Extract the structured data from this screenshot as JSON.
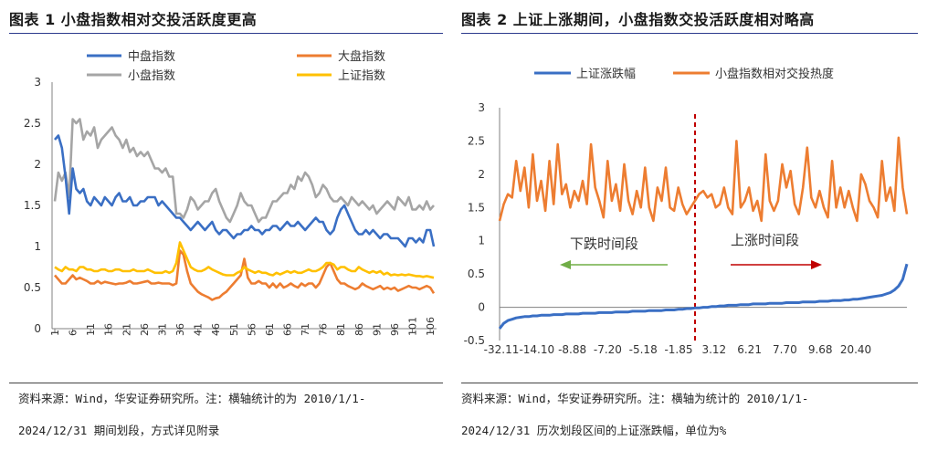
{
  "left": {
    "title": "图表 1 小盘指数相对交投活跃度更高",
    "source_line1": "资料来源：Wind，华安证券研究所。注：横轴统计的为 2010/1/1-",
    "source_line2": "2024/12/31 期间划段，方式详见附录"
  },
  "right": {
    "title": "图表 2 上证上涨期间，小盘指数交投活跃度相对略高",
    "source_line1": "资料来源：Wind，华安证券研究所。注：横轴为统计的 2010/1/1-",
    "source_line2": "2024/12/31 历次划段区间的上证涨跌幅，单位为%"
  },
  "colors": {
    "blue": "#3a6fc4",
    "orange": "#ed7d31",
    "gray": "#a5a5a5",
    "yellow": "#ffc000",
    "red_dash": "#c00000",
    "green_arrow": "#70ad47",
    "red_arrow": "#c00000"
  },
  "chart_data": [
    {
      "type": "line",
      "title": "小盘指数相对交投活跃度更高",
      "ylim": [
        0,
        3
      ],
      "yticks": [
        "0",
        "0.5",
        "1",
        "1.5",
        "2",
        "2.5",
        "3"
      ],
      "xlabel": "",
      "ylabel": "",
      "x_tick_labels": [
        "1",
        "6",
        "11",
        "16",
        "21",
        "26",
        "31",
        "36",
        "41",
        "46",
        "51",
        "56",
        "61",
        "66",
        "71",
        "76",
        "81",
        "86",
        "91",
        "96",
        "101",
        "106"
      ],
      "legend": [
        "中盘指数",
        "大盘指数",
        "小盘指数",
        "上证指数"
      ],
      "series": [
        {
          "name": "中盘指数",
          "color_key": "blue",
          "values": [
            2.3,
            2.35,
            2.2,
            1.85,
            1.4,
            1.95,
            1.7,
            1.65,
            1.7,
            1.55,
            1.5,
            1.6,
            1.55,
            1.5,
            1.6,
            1.55,
            1.5,
            1.6,
            1.65,
            1.55,
            1.55,
            1.6,
            1.5,
            1.5,
            1.55,
            1.55,
            1.6,
            1.6,
            1.6,
            1.5,
            1.55,
            1.5,
            1.45,
            1.4,
            1.35,
            1.35,
            1.3,
            1.25,
            1.2,
            1.25,
            1.3,
            1.25,
            1.2,
            1.25,
            1.3,
            1.2,
            1.15,
            1.2,
            1.2,
            1.15,
            1.1,
            1.15,
            1.15,
            1.2,
            1.2,
            1.25,
            1.2,
            1.2,
            1.15,
            1.2,
            1.2,
            1.25,
            1.25,
            1.2,
            1.25,
            1.3,
            1.25,
            1.25,
            1.3,
            1.25,
            1.2,
            1.25,
            1.3,
            1.35,
            1.3,
            1.3,
            1.2,
            1.15,
            1.2,
            1.35,
            1.45,
            1.5,
            1.4,
            1.3,
            1.2,
            1.15,
            1.15,
            1.2,
            1.15,
            1.2,
            1.15,
            1.1,
            1.15,
            1.15,
            1.1,
            1.1,
            1.1,
            1.05,
            1.0,
            1.1,
            1.1,
            1.05,
            1.1,
            1.05,
            1.2,
            1.2,
            1.0
          ]
        },
        {
          "name": "大盘指数",
          "color_key": "orange",
          "values": [
            0.65,
            0.6,
            0.55,
            0.55,
            0.6,
            0.65,
            0.6,
            0.62,
            0.6,
            0.58,
            0.55,
            0.55,
            0.58,
            0.55,
            0.57,
            0.56,
            0.55,
            0.54,
            0.55,
            0.55,
            0.56,
            0.58,
            0.55,
            0.55,
            0.56,
            0.57,
            0.58,
            0.55,
            0.55,
            0.56,
            0.55,
            0.55,
            0.55,
            0.53,
            0.55,
            0.95,
            0.9,
            0.7,
            0.55,
            0.5,
            0.45,
            0.42,
            0.4,
            0.38,
            0.35,
            0.37,
            0.38,
            0.42,
            0.45,
            0.5,
            0.55,
            0.6,
            0.65,
            0.85,
            0.62,
            0.55,
            0.55,
            0.58,
            0.55,
            0.55,
            0.5,
            0.55,
            0.5,
            0.55,
            0.5,
            0.52,
            0.55,
            0.52,
            0.5,
            0.55,
            0.52,
            0.55,
            0.55,
            0.5,
            0.55,
            0.65,
            0.75,
            0.8,
            0.7,
            0.6,
            0.55,
            0.55,
            0.52,
            0.5,
            0.48,
            0.5,
            0.55,
            0.52,
            0.5,
            0.48,
            0.5,
            0.52,
            0.48,
            0.5,
            0.48,
            0.5,
            0.46,
            0.48,
            0.5,
            0.52,
            0.5,
            0.5,
            0.48,
            0.5,
            0.52,
            0.5,
            0.43
          ]
        },
        {
          "name": "小盘指数",
          "color_key": "gray",
          "values": [
            1.55,
            1.9,
            1.8,
            1.9,
            1.6,
            2.55,
            2.5,
            2.55,
            2.3,
            2.4,
            2.35,
            2.45,
            2.2,
            2.3,
            2.35,
            2.4,
            2.45,
            2.35,
            2.3,
            2.2,
            2.3,
            2.15,
            2.2,
            2.1,
            2.15,
            2.1,
            2.15,
            2.05,
            1.95,
            1.95,
            1.9,
            1.95,
            1.85,
            1.85,
            1.4,
            1.4,
            1.35,
            1.45,
            1.6,
            1.55,
            1.45,
            1.5,
            1.55,
            1.55,
            1.65,
            1.7,
            1.55,
            1.45,
            1.35,
            1.3,
            1.4,
            1.5,
            1.65,
            1.55,
            1.5,
            1.5,
            1.4,
            1.3,
            1.35,
            1.35,
            1.45,
            1.55,
            1.55,
            1.6,
            1.65,
            1.65,
            1.75,
            1.7,
            1.85,
            1.8,
            1.9,
            1.85,
            1.75,
            1.6,
            1.65,
            1.75,
            1.7,
            1.6,
            1.55,
            1.55,
            1.6,
            1.55,
            1.5,
            1.6,
            1.55,
            1.5,
            1.55,
            1.5,
            1.45,
            1.5,
            1.4,
            1.45,
            1.5,
            1.55,
            1.5,
            1.45,
            1.6,
            1.55,
            1.5,
            1.6,
            1.45,
            1.45,
            1.5,
            1.45,
            1.55,
            1.45,
            1.5
          ]
        },
        {
          "name": "上证指数",
          "color_key": "yellow",
          "values": [
            0.75,
            0.72,
            0.7,
            0.75,
            0.72,
            0.72,
            0.7,
            0.75,
            0.75,
            0.72,
            0.72,
            0.7,
            0.7,
            0.72,
            0.72,
            0.7,
            0.7,
            0.72,
            0.72,
            0.7,
            0.7,
            0.7,
            0.72,
            0.7,
            0.7,
            0.7,
            0.72,
            0.7,
            0.68,
            0.68,
            0.68,
            0.7,
            0.68,
            0.7,
            0.8,
            1.05,
            0.95,
            0.85,
            0.75,
            0.72,
            0.7,
            0.7,
            0.72,
            0.75,
            0.72,
            0.7,
            0.68,
            0.66,
            0.65,
            0.65,
            0.65,
            0.68,
            0.7,
            0.75,
            0.72,
            0.7,
            0.68,
            0.7,
            0.68,
            0.68,
            0.66,
            0.65,
            0.68,
            0.66,
            0.68,
            0.7,
            0.68,
            0.7,
            0.68,
            0.68,
            0.7,
            0.72,
            0.7,
            0.7,
            0.72,
            0.75,
            0.8,
            0.8,
            0.78,
            0.72,
            0.75,
            0.75,
            0.72,
            0.7,
            0.7,
            0.75,
            0.72,
            0.7,
            0.68,
            0.7,
            0.68,
            0.7,
            0.66,
            0.68,
            0.65,
            0.66,
            0.65,
            0.66,
            0.65,
            0.66,
            0.65,
            0.64,
            0.64,
            0.63,
            0.64,
            0.63,
            0.62
          ]
        }
      ]
    },
    {
      "type": "line",
      "title": "上证上涨期间，小盘指数交投活跃度相对略高",
      "ylim": [
        -0.5,
        3
      ],
      "yticks": [
        "-0.5",
        "0",
        "0.5",
        "1",
        "1.5",
        "2",
        "2.5",
        "3"
      ],
      "xlabel": "",
      "ylabel": "",
      "x_tick_labels": [
        "-32.11",
        "-14.10",
        "-8.88",
        "-7.20",
        "-5.18",
        "-1.85",
        "3.12",
        "6.21",
        "7.70",
        "9.68",
        "20.40"
      ],
      "legend": [
        "上证涨跌幅",
        "小盘指数相对交投热度"
      ],
      "divider_label": "-1.85",
      "annotation_down": "下跌时间段",
      "annotation_up": "上涨时间段",
      "series": [
        {
          "name": "上证涨跌幅",
          "color_key": "blue",
          "values": [
            -0.32,
            -0.24,
            -0.2,
            -0.18,
            -0.16,
            -0.15,
            -0.14,
            -0.14,
            -0.13,
            -0.13,
            -0.12,
            -0.12,
            -0.12,
            -0.11,
            -0.11,
            -0.11,
            -0.1,
            -0.1,
            -0.1,
            -0.1,
            -0.09,
            -0.09,
            -0.09,
            -0.09,
            -0.08,
            -0.08,
            -0.08,
            -0.08,
            -0.07,
            -0.07,
            -0.07,
            -0.07,
            -0.06,
            -0.06,
            -0.06,
            -0.06,
            -0.05,
            -0.05,
            -0.05,
            -0.05,
            -0.04,
            -0.04,
            -0.04,
            -0.03,
            -0.03,
            -0.02,
            -0.02,
            -0.01,
            -0.01,
            0.0,
            0.0,
            0.01,
            0.01,
            0.02,
            0.02,
            0.03,
            0.03,
            0.03,
            0.04,
            0.04,
            0.04,
            0.05,
            0.05,
            0.05,
            0.05,
            0.06,
            0.06,
            0.06,
            0.06,
            0.07,
            0.07,
            0.07,
            0.07,
            0.08,
            0.08,
            0.08,
            0.08,
            0.09,
            0.09,
            0.09,
            0.1,
            0.1,
            0.1,
            0.11,
            0.11,
            0.12,
            0.12,
            0.13,
            0.14,
            0.15,
            0.16,
            0.17,
            0.18,
            0.2,
            0.22,
            0.26,
            0.32,
            0.42,
            0.65
          ]
        },
        {
          "name": "小盘指数相对交投热度",
          "color_key": "orange",
          "values": [
            1.3,
            1.55,
            1.7,
            1.65,
            2.2,
            1.75,
            2.1,
            1.5,
            2.3,
            1.6,
            1.9,
            1.45,
            2.2,
            1.55,
            2.45,
            1.7,
            1.85,
            1.5,
            1.75,
            1.6,
            1.9,
            1.55,
            2.45,
            1.8,
            1.6,
            1.35,
            2.2,
            1.6,
            1.85,
            1.45,
            2.15,
            1.6,
            1.4,
            1.75,
            1.5,
            2.1,
            1.5,
            1.3,
            1.8,
            1.6,
            2.1,
            1.5,
            1.45,
            1.8,
            1.55,
            1.4,
            1.5,
            1.6,
            1.7,
            1.75,
            1.65,
            1.7,
            1.5,
            1.55,
            1.8,
            1.5,
            1.4,
            2.5,
            1.5,
            1.6,
            1.8,
            1.45,
            1.6,
            1.3,
            2.3,
            1.6,
            1.45,
            1.6,
            2.15,
            1.8,
            2.05,
            1.55,
            1.4,
            1.8,
            2.4,
            1.65,
            1.5,
            1.75,
            1.5,
            1.35,
            2.2,
            1.5,
            1.8,
            1.5,
            1.75,
            1.5,
            1.3,
            2.0,
            1.85,
            1.6,
            1.5,
            1.35,
            2.2,
            1.6,
            1.8,
            1.45,
            2.55,
            1.8,
            1.4
          ]
        }
      ]
    }
  ]
}
